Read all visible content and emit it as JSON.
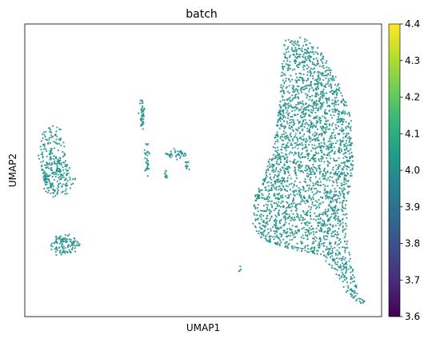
{
  "chart_data": {
    "type": "scatter",
    "title": "batch",
    "xlabel": "UMAP1",
    "ylabel": "UMAP2",
    "x_ticks_shown": false,
    "y_ticks_shown": false,
    "grid": false,
    "point_color": "#21918c",
    "color_value": 4.0,
    "colorbar": {
      "label": "",
      "min": 3.6,
      "max": 4.4,
      "ticks": [
        "4.4",
        "4.3",
        "4.2",
        "4.1",
        "4.0",
        "3.9",
        "3.8",
        "3.7",
        "3.6"
      ],
      "colormap": "viridis",
      "colors": [
        "#440154",
        "#482878",
        "#3e4989",
        "#31688e",
        "#26828e",
        "#1f9e89",
        "#35b779",
        "#6ece58",
        "#b5de2b",
        "#fde725"
      ]
    },
    "series": [
      {
        "values_note": "single batch; all cells share color value 4.0",
        "clusters": [
          {
            "cx": -0.8,
            "cy": 0.55,
            "rx": 0.06,
            "ry": 0.12,
            "n": 180
          },
          {
            "cx": -0.78,
            "cy": 0.47,
            "rx": 0.07,
            "ry": 0.07,
            "n": 120
          },
          {
            "cx": -0.75,
            "cy": 0.22,
            "rx": 0.06,
            "ry": 0.035,
            "n": 110
          },
          {
            "cx": -0.42,
            "cy": 0.7,
            "rx": 0.008,
            "ry": 0.07,
            "n": 40
          },
          {
            "cx": -0.4,
            "cy": 0.54,
            "rx": 0.01,
            "ry": 0.07,
            "n": 30
          },
          {
            "cx": -0.28,
            "cy": 0.56,
            "rx": 0.05,
            "ry": 0.015,
            "n": 40
          },
          {
            "cx": -0.32,
            "cy": 0.48,
            "rx": 0.005,
            "ry": 0.015,
            "n": 10
          },
          {
            "cx": -0.23,
            "cy": 0.52,
            "rx": 0.007,
            "ry": 0.02,
            "n": 10
          },
          {
            "cx": -0.005,
            "cy": 0.13,
            "rx": 0.004,
            "ry": 0.004,
            "n": 4
          }
        ],
        "main_region": {
          "outline": [
            [
              0.18,
              0.99
            ],
            [
              0.26,
              1.0
            ],
            [
              0.34,
              0.96
            ],
            [
              0.4,
              0.86
            ],
            [
              0.44,
              0.78
            ],
            [
              0.47,
              0.7
            ],
            [
              0.48,
              0.52
            ],
            [
              0.46,
              0.4
            ],
            [
              0.45,
              0.3
            ],
            [
              0.46,
              0.2
            ],
            [
              0.5,
              0.04
            ],
            [
              0.56,
              -0.02
            ],
            [
              0.46,
              0.02
            ],
            [
              0.4,
              0.12
            ],
            [
              0.34,
              0.18
            ],
            [
              0.24,
              0.2
            ],
            [
              0.14,
              0.22
            ],
            [
              0.08,
              0.25
            ],
            [
              0.05,
              0.3
            ],
            [
              0.06,
              0.4
            ],
            [
              0.1,
              0.48
            ],
            [
              0.14,
              0.6
            ],
            [
              0.16,
              0.72
            ],
            [
              0.17,
              0.84
            ]
          ],
          "n": 2600
        }
      }
    ]
  }
}
